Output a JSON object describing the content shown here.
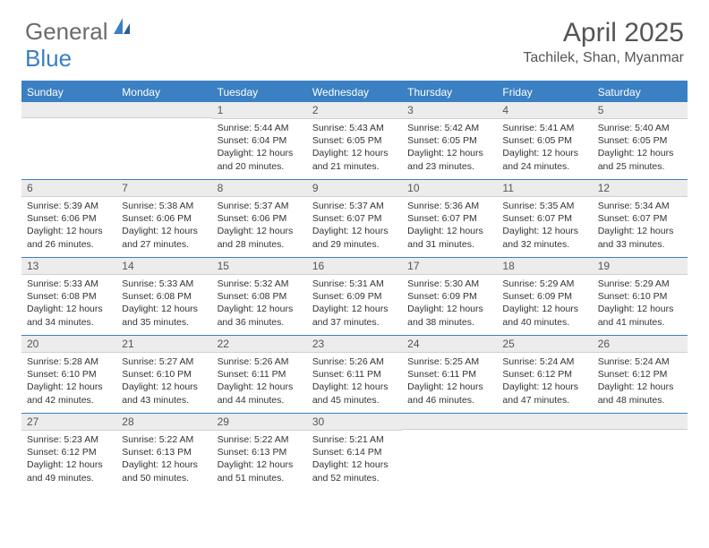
{
  "logo": {
    "text1": "General",
    "text2": "Blue"
  },
  "colors": {
    "brand_blue": "#3a80c3",
    "header_gray": "#ececec",
    "text_gray": "#555555",
    "body_text": "#333333"
  },
  "title": "April 2025",
  "location": "Tachilek, Shan, Myanmar",
  "weekdays": [
    "Sunday",
    "Monday",
    "Tuesday",
    "Wednesday",
    "Thursday",
    "Friday",
    "Saturday"
  ],
  "weeks": [
    [
      {
        "day": "",
        "sunrise": "",
        "sunset": "",
        "daylight": ""
      },
      {
        "day": "",
        "sunrise": "",
        "sunset": "",
        "daylight": ""
      },
      {
        "day": "1",
        "sunrise": "Sunrise: 5:44 AM",
        "sunset": "Sunset: 6:04 PM",
        "daylight": "Daylight: 12 hours and 20 minutes."
      },
      {
        "day": "2",
        "sunrise": "Sunrise: 5:43 AM",
        "sunset": "Sunset: 6:05 PM",
        "daylight": "Daylight: 12 hours and 21 minutes."
      },
      {
        "day": "3",
        "sunrise": "Sunrise: 5:42 AM",
        "sunset": "Sunset: 6:05 PM",
        "daylight": "Daylight: 12 hours and 23 minutes."
      },
      {
        "day": "4",
        "sunrise": "Sunrise: 5:41 AM",
        "sunset": "Sunset: 6:05 PM",
        "daylight": "Daylight: 12 hours and 24 minutes."
      },
      {
        "day": "5",
        "sunrise": "Sunrise: 5:40 AM",
        "sunset": "Sunset: 6:05 PM",
        "daylight": "Daylight: 12 hours and 25 minutes."
      }
    ],
    [
      {
        "day": "6",
        "sunrise": "Sunrise: 5:39 AM",
        "sunset": "Sunset: 6:06 PM",
        "daylight": "Daylight: 12 hours and 26 minutes."
      },
      {
        "day": "7",
        "sunrise": "Sunrise: 5:38 AM",
        "sunset": "Sunset: 6:06 PM",
        "daylight": "Daylight: 12 hours and 27 minutes."
      },
      {
        "day": "8",
        "sunrise": "Sunrise: 5:37 AM",
        "sunset": "Sunset: 6:06 PM",
        "daylight": "Daylight: 12 hours and 28 minutes."
      },
      {
        "day": "9",
        "sunrise": "Sunrise: 5:37 AM",
        "sunset": "Sunset: 6:07 PM",
        "daylight": "Daylight: 12 hours and 29 minutes."
      },
      {
        "day": "10",
        "sunrise": "Sunrise: 5:36 AM",
        "sunset": "Sunset: 6:07 PM",
        "daylight": "Daylight: 12 hours and 31 minutes."
      },
      {
        "day": "11",
        "sunrise": "Sunrise: 5:35 AM",
        "sunset": "Sunset: 6:07 PM",
        "daylight": "Daylight: 12 hours and 32 minutes."
      },
      {
        "day": "12",
        "sunrise": "Sunrise: 5:34 AM",
        "sunset": "Sunset: 6:07 PM",
        "daylight": "Daylight: 12 hours and 33 minutes."
      }
    ],
    [
      {
        "day": "13",
        "sunrise": "Sunrise: 5:33 AM",
        "sunset": "Sunset: 6:08 PM",
        "daylight": "Daylight: 12 hours and 34 minutes."
      },
      {
        "day": "14",
        "sunrise": "Sunrise: 5:33 AM",
        "sunset": "Sunset: 6:08 PM",
        "daylight": "Daylight: 12 hours and 35 minutes."
      },
      {
        "day": "15",
        "sunrise": "Sunrise: 5:32 AM",
        "sunset": "Sunset: 6:08 PM",
        "daylight": "Daylight: 12 hours and 36 minutes."
      },
      {
        "day": "16",
        "sunrise": "Sunrise: 5:31 AM",
        "sunset": "Sunset: 6:09 PM",
        "daylight": "Daylight: 12 hours and 37 minutes."
      },
      {
        "day": "17",
        "sunrise": "Sunrise: 5:30 AM",
        "sunset": "Sunset: 6:09 PM",
        "daylight": "Daylight: 12 hours and 38 minutes."
      },
      {
        "day": "18",
        "sunrise": "Sunrise: 5:29 AM",
        "sunset": "Sunset: 6:09 PM",
        "daylight": "Daylight: 12 hours and 40 minutes."
      },
      {
        "day": "19",
        "sunrise": "Sunrise: 5:29 AM",
        "sunset": "Sunset: 6:10 PM",
        "daylight": "Daylight: 12 hours and 41 minutes."
      }
    ],
    [
      {
        "day": "20",
        "sunrise": "Sunrise: 5:28 AM",
        "sunset": "Sunset: 6:10 PM",
        "daylight": "Daylight: 12 hours and 42 minutes."
      },
      {
        "day": "21",
        "sunrise": "Sunrise: 5:27 AM",
        "sunset": "Sunset: 6:10 PM",
        "daylight": "Daylight: 12 hours and 43 minutes."
      },
      {
        "day": "22",
        "sunrise": "Sunrise: 5:26 AM",
        "sunset": "Sunset: 6:11 PM",
        "daylight": "Daylight: 12 hours and 44 minutes."
      },
      {
        "day": "23",
        "sunrise": "Sunrise: 5:26 AM",
        "sunset": "Sunset: 6:11 PM",
        "daylight": "Daylight: 12 hours and 45 minutes."
      },
      {
        "day": "24",
        "sunrise": "Sunrise: 5:25 AM",
        "sunset": "Sunset: 6:11 PM",
        "daylight": "Daylight: 12 hours and 46 minutes."
      },
      {
        "day": "25",
        "sunrise": "Sunrise: 5:24 AM",
        "sunset": "Sunset: 6:12 PM",
        "daylight": "Daylight: 12 hours and 47 minutes."
      },
      {
        "day": "26",
        "sunrise": "Sunrise: 5:24 AM",
        "sunset": "Sunset: 6:12 PM",
        "daylight": "Daylight: 12 hours and 48 minutes."
      }
    ],
    [
      {
        "day": "27",
        "sunrise": "Sunrise: 5:23 AM",
        "sunset": "Sunset: 6:12 PM",
        "daylight": "Daylight: 12 hours and 49 minutes."
      },
      {
        "day": "28",
        "sunrise": "Sunrise: 5:22 AM",
        "sunset": "Sunset: 6:13 PM",
        "daylight": "Daylight: 12 hours and 50 minutes."
      },
      {
        "day": "29",
        "sunrise": "Sunrise: 5:22 AM",
        "sunset": "Sunset: 6:13 PM",
        "daylight": "Daylight: 12 hours and 51 minutes."
      },
      {
        "day": "30",
        "sunrise": "Sunrise: 5:21 AM",
        "sunset": "Sunset: 6:14 PM",
        "daylight": "Daylight: 12 hours and 52 minutes."
      },
      {
        "day": "",
        "sunrise": "",
        "sunset": "",
        "daylight": ""
      },
      {
        "day": "",
        "sunrise": "",
        "sunset": "",
        "daylight": ""
      },
      {
        "day": "",
        "sunrise": "",
        "sunset": "",
        "daylight": ""
      }
    ]
  ]
}
